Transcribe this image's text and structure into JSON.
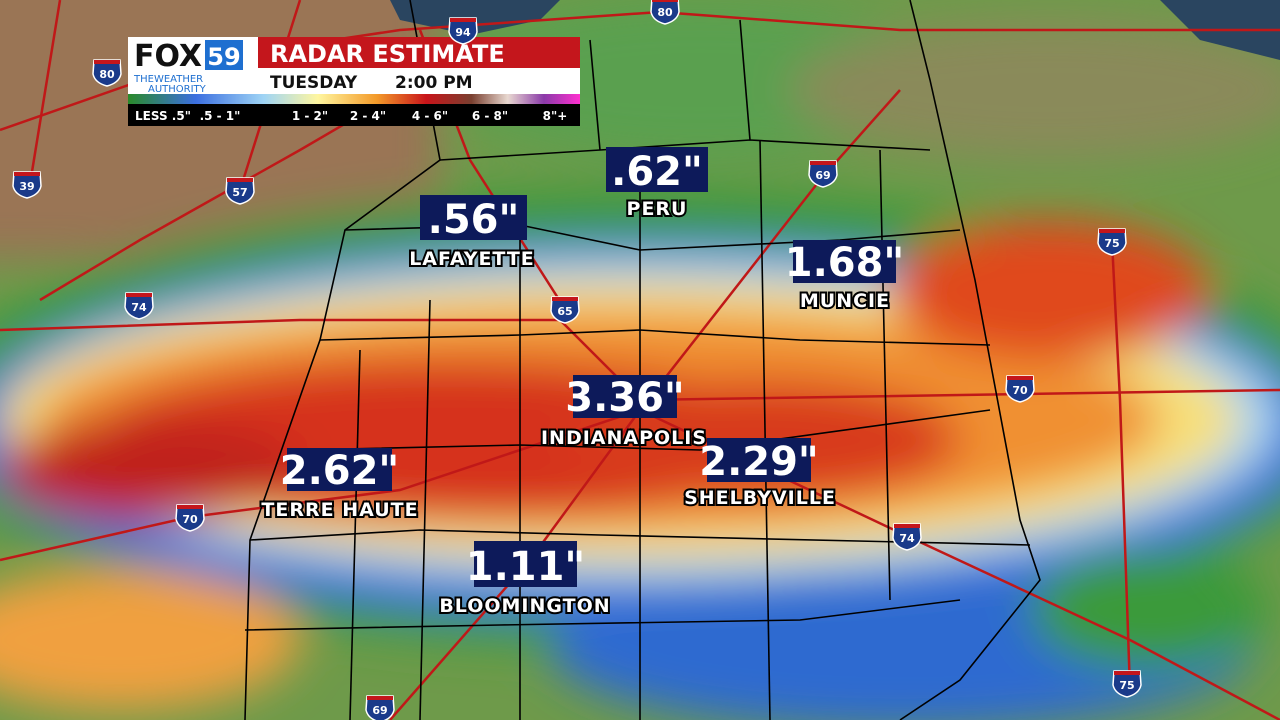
{
  "header": {
    "logo": "FOX",
    "logo_number": "59",
    "tagline": [
      "THEWEATHER",
      "AUTHORITY"
    ],
    "title": "RADAR ESTIMATE",
    "day": "TUESDAY",
    "time": "2:00 PM"
  },
  "legend": [
    "LESS .5\"",
    ".5 - 1\"",
    "1 - 2\"",
    "2 - 4\"",
    "4 - 6\"",
    "6 - 8\"",
    "8\"+"
  ],
  "cities": [
    {
      "amount": ".56\"",
      "name": "LAFAYETTE"
    },
    {
      "amount": ".62\"",
      "name": "PERU"
    },
    {
      "amount": "1.68\"",
      "name": "MUNCIE"
    },
    {
      "amount": "3.36\"",
      "name": "INDIANAPOLIS"
    },
    {
      "amount": "2.29\"",
      "name": "SHELBYVILLE"
    },
    {
      "amount": "2.62\"",
      "name": "TERRE HAUTE"
    },
    {
      "amount": "1.11\"",
      "name": "BLOOMINGTON"
    }
  ],
  "interstates": [
    94,
    80,
    80,
    39,
    57,
    74,
    65,
    69,
    70,
    70,
    74,
    75,
    75,
    69
  ]
}
